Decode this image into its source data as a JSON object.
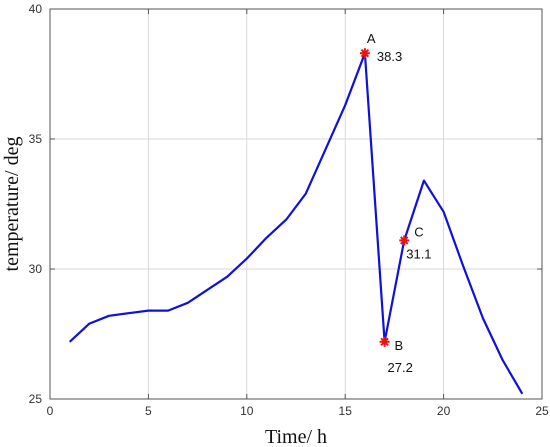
{
  "chart_data": {
    "type": "line",
    "xlabel": "Time/ h",
    "ylabel": "temperature/ deg",
    "xlim": [
      0,
      25
    ],
    "ylim": [
      25,
      40
    ],
    "xticks": [
      0,
      5,
      10,
      15,
      20,
      25
    ],
    "yticks": [
      25,
      30,
      35,
      40
    ],
    "grid": true,
    "series": [
      {
        "color": "#1010dd",
        "x": [
          1,
          2,
          3,
          4,
          5,
          6,
          7,
          8,
          9,
          10,
          11,
          12,
          13,
          14,
          15,
          16,
          17,
          18,
          19,
          20,
          21,
          22,
          23,
          24
        ],
        "y": [
          27.2,
          27.9,
          28.2,
          28.3,
          28.4,
          28.4,
          28.7,
          29.2,
          29.7,
          30.4,
          31.2,
          31.9,
          32.9,
          34.6,
          36.3,
          38.3,
          27.2,
          31.1,
          33.4,
          32.2,
          30.1,
          28.1,
          26.5,
          25.2
        ]
      }
    ],
    "annotations": [
      {
        "letter": "A",
        "value": "38.3",
        "x": 16,
        "y": 38.3
      },
      {
        "letter": "B",
        "value": "27.2",
        "x": 17,
        "y": 27.2
      },
      {
        "letter": "C",
        "value": "31.1",
        "x": 18,
        "y": 31.1
      }
    ],
    "marker_color": "#ee1111"
  }
}
